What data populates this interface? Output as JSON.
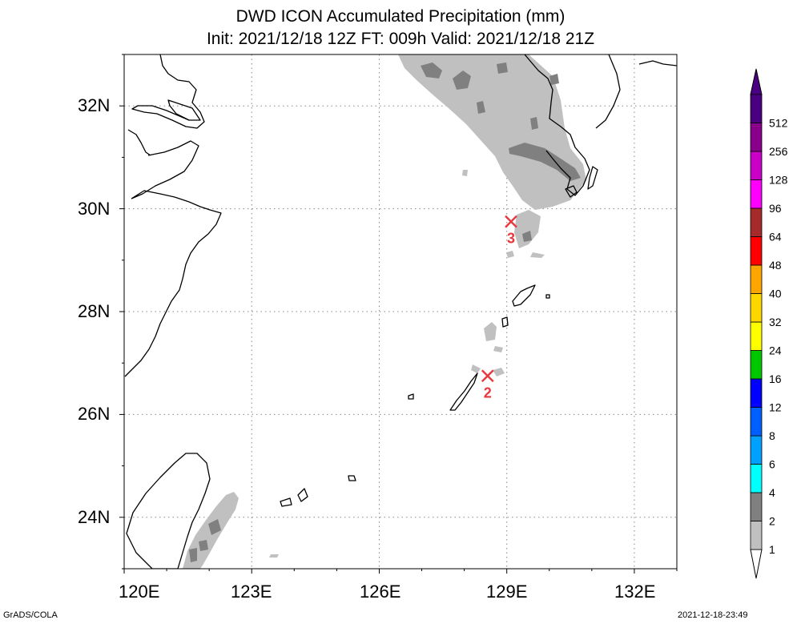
{
  "header": {
    "title": "DWD ICON Accumulated Precipitation (mm)",
    "subtitle": "Init: 2021/12/18 12Z  FT: 009h  Valid: 2021/12/18 21Z"
  },
  "map": {
    "lon_range": [
      120,
      133
    ],
    "lat_range": [
      23,
      33
    ],
    "x_ticks": [
      "120E",
      "123E",
      "126E",
      "129E",
      "132E"
    ],
    "y_ticks": [
      "32N",
      "30N",
      "28N",
      "26N",
      "24N"
    ],
    "markers": [
      {
        "id": "2",
        "label": "2",
        "lon": 128.55,
        "lat": 26.75
      },
      {
        "id": "3",
        "label": "3",
        "lon": 129.1,
        "lat": 29.75
      }
    ],
    "colors": {
      "coast": "#000000",
      "grid": "#888888",
      "marker": "#e8383d",
      "precip_light": "#c0c0c0",
      "precip_dark": "#808080"
    }
  },
  "legend": {
    "labels": [
      "1",
      "2",
      "4",
      "6",
      "8",
      "12",
      "16",
      "24",
      "32",
      "40",
      "48",
      "64",
      "96",
      "128",
      "256",
      "512"
    ],
    "colors": [
      "#c0c0c0",
      "#808080",
      "#00ffff",
      "#00a0ff",
      "#0060ff",
      "#0000ff",
      "#00c800",
      "#ffff00",
      "#ffd700",
      "#ffa500",
      "#ff0000",
      "#a52a2a",
      "#ff00ff",
      "#c800c8",
      "#8b008b",
      "#4b0082"
    ]
  },
  "footer": {
    "left": "GrADS/COLA",
    "right": "2021-12-18-23:49"
  }
}
